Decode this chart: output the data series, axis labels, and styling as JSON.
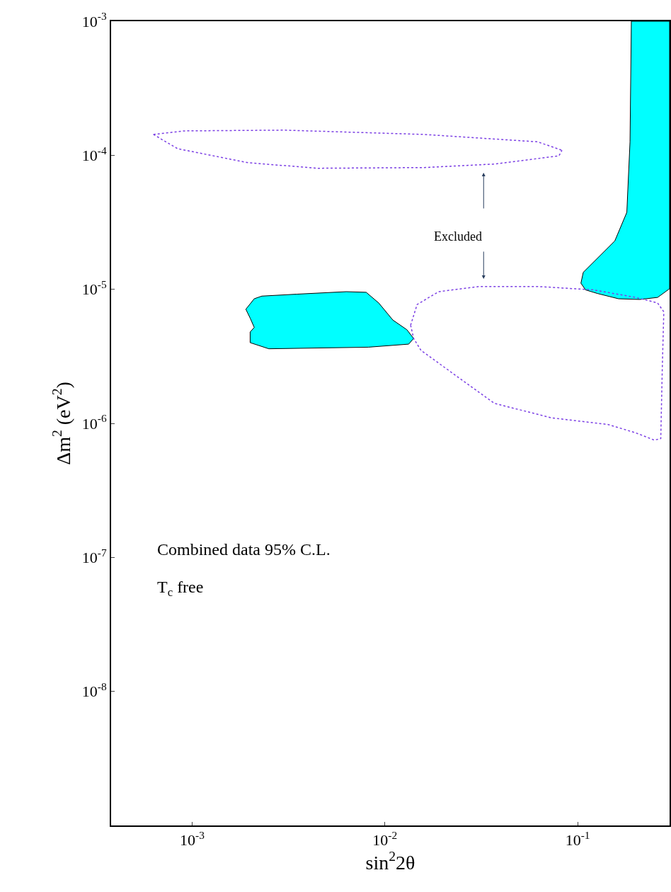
{
  "chart_data": {
    "type": "line",
    "log": "xy",
    "xlabel": "sin$^{2}$2θ",
    "ylabel": "Δm$^{2}$ (eV$^{2}$)",
    "xlim": [
      0.00038,
      0.3
    ],
    "ylim": [
      1e-09,
      0.001
    ],
    "xticks": [
      {
        "value": 0.001,
        "label": "10$^{-3}$"
      },
      {
        "value": 0.01,
        "label": "10$^{-2}$"
      },
      {
        "value": 0.1,
        "label": "10$^{-1}$"
      }
    ],
    "yticks": [
      {
        "value": 1e-08,
        "label": "10$^{-8}$"
      },
      {
        "value": 1e-07,
        "label": "10$^{-7}$"
      },
      {
        "value": 1e-06,
        "label": "10$^{-6}$"
      },
      {
        "value": 1e-05,
        "label": "10$^{-5}$"
      },
      {
        "value": 0.0001,
        "label": "10$^{-4}$"
      },
      {
        "value": 0.001,
        "label": "10$^{-3}$"
      }
    ],
    "series": [
      {
        "type": "area",
        "color": "#00ffff",
        "x": [
          0.0019,
          0.0021,
          0.0023,
          0.0035,
          0.0063,
          0.008,
          0.0093,
          0.011,
          0.013,
          0.0141,
          0.0133,
          0.0082,
          0.0025,
          0.002,
          0.002,
          0.0021,
          0.002,
          0.0019
        ],
        "values": [
          7.1e-06,
          8.5e-06,
          8.9e-06,
          9.2e-06,
          9.6e-06,
          9.5e-06,
          7.9e-06,
          5.9e-06,
          5e-06,
          4.3e-06,
          3.9e-06,
          3.7e-06,
          3.6e-06,
          4e-06,
          4.8e-06,
          5.2e-06,
          6.1e-06,
          7.1e-06
        ]
      },
      {
        "type": "area",
        "color": "#00ffff",
        "x": [
          0.19,
          0.187,
          0.18,
          0.156,
          0.132,
          0.107,
          0.104,
          0.11,
          0.127,
          0.163,
          0.21,
          0.26,
          0.3,
          0.3,
          0.19
        ],
        "values": [
          0.001,
          0.000126,
          3.75e-05,
          2.3e-05,
          1.81e-05,
          1.34e-05,
          1.11e-05,
          9.9e-06,
          9.3e-06,
          8.5e-06,
          8.4e-06,
          8.7e-06,
          1.01e-05,
          0.001,
          0.001
        ]
      },
      {
        "color": "#7b3fe4",
        "line_style": "dotted",
        "x": [
          0.00063,
          0.00091,
          0.003,
          0.016,
          0.062,
          0.083
        ],
        "values": [
          0.000143,
          0.000152,
          0.000154,
          0.000143,
          0.000126,
          0.000109
        ]
      },
      {
        "color": "#7b3fe4",
        "line_style": "dotted",
        "x": [
          0.00063,
          0.00084,
          0.00195,
          0.0045,
          0.016,
          0.037,
          0.08,
          0.083
        ],
        "values": [
          0.000143,
          0.000112,
          8.8e-05,
          8e-05,
          8.1e-05,
          8.6e-05,
          9.9e-05,
          0.000109
        ]
      },
      {
        "color": "#7b3fe4",
        "line_style": "dotted",
        "x": [
          0.0136,
          0.0147,
          0.019,
          0.031,
          0.062,
          0.121,
          0.2,
          0.26,
          0.28
        ],
        "values": [
          5.4e-06,
          7.7e-06,
          9.6e-06,
          1.05e-05,
          1.05e-05,
          9.9e-06,
          8.7e-06,
          7.9e-06,
          6.8e-06
        ]
      },
      {
        "color": "#7b3fe4",
        "line_style": "dotted",
        "x": [
          0.0136,
          0.0141,
          0.0154,
          0.037,
          0.073,
          0.144,
          0.2,
          0.25,
          0.27,
          0.275,
          0.28
        ],
        "values": [
          5.4e-06,
          4.3e-06,
          3.5e-06,
          1.41e-06,
          1.1e-06,
          9.8e-07,
          8.5e-07,
          7.5e-07,
          7.7e-07,
          2.6e-06,
          6.8e-06
        ]
      }
    ],
    "annotations": [
      "Excluded",
      "Combined data 95% C.L.",
      "T$_{c}$ free"
    ]
  }
}
